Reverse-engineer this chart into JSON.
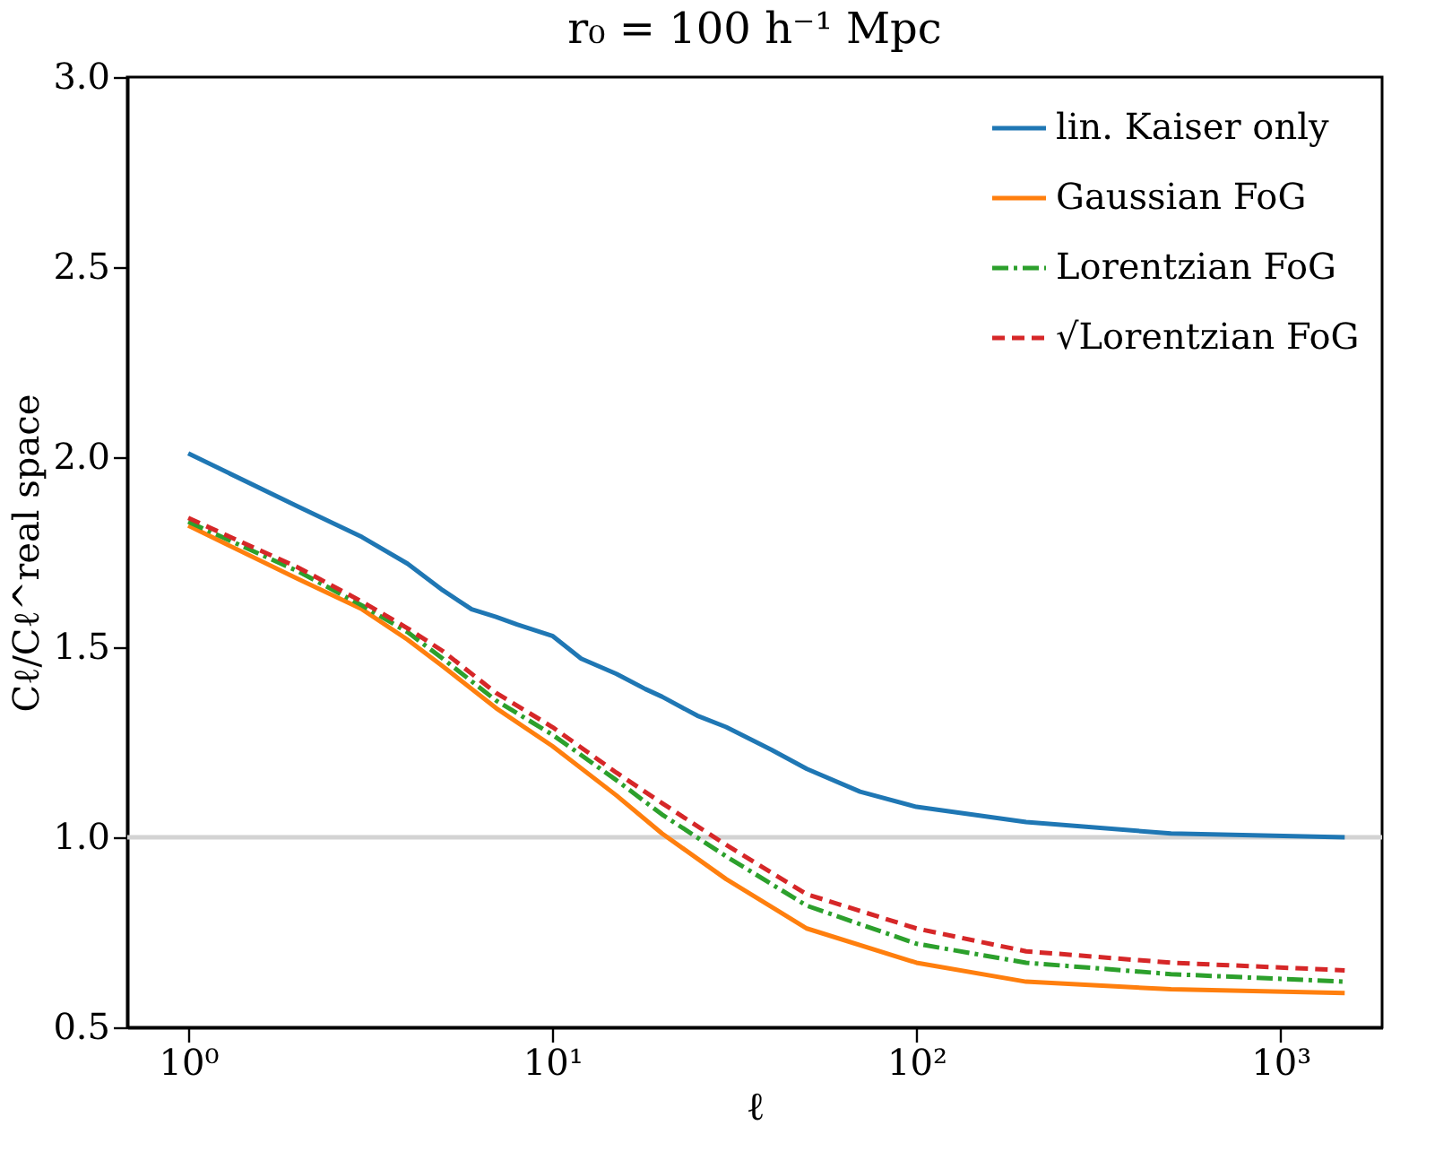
{
  "chart_data": {
    "type": "line",
    "title": "r₀ = 100 h⁻¹ Mpc",
    "xlabel": "ℓ",
    "ylabel": "Cℓ/Cℓ^real space",
    "log": "x",
    "xlim": [
      0.68,
      1900
    ],
    "xticks": [
      {
        "value": 1,
        "label": "10⁰"
      },
      {
        "value": 10,
        "label": "10¹"
      },
      {
        "value": 100,
        "label": "10²"
      },
      {
        "value": 1000,
        "label": "10³"
      }
    ],
    "ylim": [
      0.5,
      3.0
    ],
    "yticks": [
      0.5,
      {
        "value": 1.0,
        "label": "1.0"
      },
      1.5,
      {
        "value": 2.0,
        "label": "2.0"
      },
      2.5,
      {
        "value": 3.0,
        "label": "3.0"
      }
    ],
    "grid": false,
    "legend": "top right",
    "marker": "none",
    "ref_lines": [
      {
        "axis": "y",
        "value": 1.0,
        "color": "#d3d3d3",
        "line_style": "solid"
      }
    ],
    "series": [
      {
        "name": "lin. Kaiser only",
        "color": "#1f77b4",
        "line_style": "solid",
        "x": [
          1,
          2,
          3,
          4,
          5,
          6,
          7,
          8,
          10,
          12,
          15,
          18,
          20,
          25,
          30,
          40,
          50,
          70,
          100,
          200,
          500,
          1500
        ],
        "values": [
          2.01,
          1.87,
          1.79,
          1.72,
          1.65,
          1.6,
          1.58,
          1.56,
          1.53,
          1.47,
          1.43,
          1.39,
          1.37,
          1.32,
          1.29,
          1.23,
          1.18,
          1.12,
          1.08,
          1.04,
          1.01,
          1.0
        ]
      },
      {
        "name": "Gaussian FoG",
        "color": "#ff7f0e",
        "line_style": "solid",
        "x": [
          1,
          2,
          3,
          4,
          5,
          7,
          10,
          15,
          20,
          30,
          50,
          100,
          200,
          500,
          1500
        ],
        "values": [
          1.82,
          1.68,
          1.6,
          1.52,
          1.45,
          1.34,
          1.24,
          1.11,
          1.01,
          0.89,
          0.76,
          0.67,
          0.62,
          0.6,
          0.59
        ]
      },
      {
        "name": "Lorentzian FoG",
        "color": "#2ca02c",
        "line_style": "dashdot",
        "x": [
          1,
          2,
          3,
          4,
          5,
          7,
          10,
          15,
          20,
          30,
          50,
          100,
          200,
          500,
          1500
        ],
        "values": [
          1.83,
          1.7,
          1.61,
          1.54,
          1.47,
          1.36,
          1.27,
          1.15,
          1.06,
          0.95,
          0.82,
          0.72,
          0.67,
          0.64,
          0.62
        ]
      },
      {
        "name": "√Lorentzian FoG",
        "color": "#d62728",
        "line_style": "dashed",
        "x": [
          1,
          2,
          3,
          4,
          5,
          7,
          10,
          15,
          20,
          30,
          50,
          100,
          200,
          500,
          1500
        ],
        "values": [
          1.84,
          1.71,
          1.62,
          1.55,
          1.49,
          1.38,
          1.29,
          1.17,
          1.09,
          0.98,
          0.85,
          0.76,
          0.7,
          0.67,
          0.65
        ]
      }
    ]
  }
}
